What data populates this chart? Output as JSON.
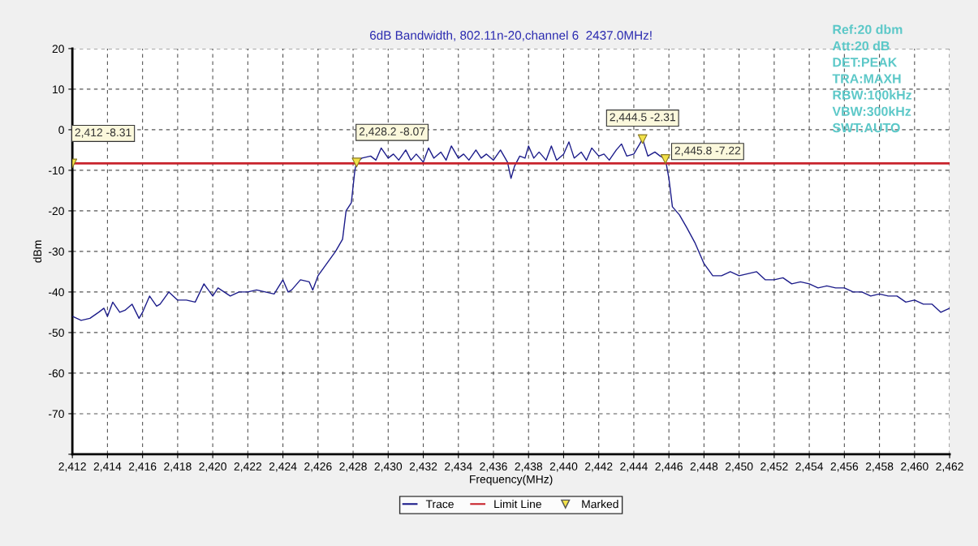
{
  "chart_data": {
    "type": "line",
    "title": "6dB Bandwidth, 802.11n-20,channel 6  2437.0MHz!",
    "xlabel": "Frequency(MHz)",
    "ylabel": "dBm",
    "xlim": [
      2412,
      2462
    ],
    "ylim": [
      -80,
      20
    ],
    "xticks": [
      {
        "value": 2412,
        "label": "2,412"
      },
      {
        "value": 2414,
        "label": "2,414"
      },
      {
        "value": 2416,
        "label": "2,416"
      },
      {
        "value": 2418,
        "label": "2,418"
      },
      {
        "value": 2420,
        "label": "2,420"
      },
      {
        "value": 2422,
        "label": "2,422"
      },
      {
        "value": 2424,
        "label": "2,424"
      },
      {
        "value": 2426,
        "label": "2,426"
      },
      {
        "value": 2428,
        "label": "2,428"
      },
      {
        "value": 2430,
        "label": "2,430"
      },
      {
        "value": 2432,
        "label": "2,432"
      },
      {
        "value": 2434,
        "label": "2,434"
      },
      {
        "value": 2436,
        "label": "2,436"
      },
      {
        "value": 2438,
        "label": "2,438"
      },
      {
        "value": 2440,
        "label": "2,440"
      },
      {
        "value": 2442,
        "label": "2,442"
      },
      {
        "value": 2444,
        "label": "2,444"
      },
      {
        "value": 2446,
        "label": "2,446"
      },
      {
        "value": 2448,
        "label": "2,448"
      },
      {
        "value": 2450,
        "label": "2,450"
      },
      {
        "value": 2452,
        "label": "2,452"
      },
      {
        "value": 2454,
        "label": "2,454"
      },
      {
        "value": 2456,
        "label": "2,456"
      },
      {
        "value": 2458,
        "label": "2,458"
      },
      {
        "value": 2460,
        "label": "2,460"
      },
      {
        "value": 2462,
        "label": "2,462"
      }
    ],
    "yticks": [
      {
        "value": -80,
        "label": null
      },
      -70,
      -60,
      -50,
      -40,
      -30,
      -20,
      -10,
      0,
      10,
      20
    ],
    "grid": true,
    "legend": "bottom",
    "series": [
      {
        "name": "Trace",
        "color": "#1c1c8a",
        "marker": "none",
        "line_style": "solid",
        "x": [
          2412,
          2412.5,
          2413,
          2413.5,
          2413.8,
          2414,
          2414.3,
          2414.7,
          2415,
          2415.4,
          2415.8,
          2416,
          2416.4,
          2416.8,
          2417,
          2417.5,
          2418,
          2418.5,
          2419,
          2419.5,
          2420,
          2420.3,
          2421,
          2421.5,
          2422,
          2422.5,
          2423,
          2423.5,
          2424,
          2424.3,
          2424.5,
          2425,
          2425.5,
          2425.7,
          2426,
          2426.5,
          2427,
          2427.4,
          2427.6,
          2427.9,
          2428.1,
          2428.2,
          2428.5,
          2429,
          2429.3,
          2429.6,
          2430,
          2430.3,
          2430.6,
          2431,
          2431.3,
          2431.6,
          2432,
          2432.3,
          2432.6,
          2433,
          2433.3,
          2433.6,
          2434,
          2434.3,
          2434.6,
          2435,
          2435.3,
          2435.6,
          2436,
          2436.4,
          2436.8,
          2437,
          2437.2,
          2437.5,
          2437.8,
          2438,
          2438.3,
          2438.6,
          2439,
          2439.3,
          2439.6,
          2440,
          2440.3,
          2440.6,
          2441,
          2441.3,
          2441.6,
          2442,
          2442.3,
          2442.6,
          2443,
          2443.3,
          2443.6,
          2444,
          2444.5,
          2444.8,
          2445.2,
          2445.5,
          2445.8,
          2446,
          2446.2,
          2446.6,
          2447,
          2447.5,
          2448,
          2448.5,
          2449,
          2449.5,
          2450,
          2450.5,
          2451,
          2451.5,
          2452,
          2452.5,
          2453,
          2453.5,
          2454,
          2454.5,
          2455,
          2455.5,
          2456,
          2456.5,
          2457,
          2457.5,
          2458,
          2458.5,
          2459,
          2459.5,
          2460,
          2460.5,
          2461,
          2461.5,
          2462
        ],
        "values": [
          -46,
          -47,
          -46.5,
          -45,
          -44,
          -46,
          -42.5,
          -45,
          -44.5,
          -43,
          -46.5,
          -45,
          -41,
          -43.5,
          -43,
          -40,
          -42,
          -42,
          -42.5,
          -38,
          -41,
          -39,
          -41,
          -40,
          -40,
          -39.5,
          -40,
          -40.5,
          -37,
          -40,
          -39.5,
          -37,
          -37.5,
          -39.5,
          -36,
          -33,
          -30,
          -27,
          -20,
          -18,
          -10,
          -8.07,
          -7,
          -6.5,
          -7.5,
          -4.5,
          -7,
          -6,
          -7.5,
          -5,
          -7.5,
          -6,
          -8,
          -4.5,
          -7,
          -5.5,
          -7.5,
          -4,
          -7,
          -6,
          -7.5,
          -5,
          -7,
          -6,
          -7.5,
          -5,
          -8,
          -12,
          -9,
          -6.5,
          -7,
          -4,
          -7,
          -5.5,
          -7.5,
          -4,
          -7.5,
          -6,
          -3,
          -7,
          -5.5,
          -7.5,
          -4.5,
          -6.5,
          -6,
          -7.5,
          -5,
          -3.5,
          -6.5,
          -6,
          -2.31,
          -6.5,
          -5.5,
          -6.5,
          -7.22,
          -12,
          -19,
          -21,
          -24,
          -28,
          -33,
          -36,
          -36,
          -35,
          -36,
          -35.5,
          -35,
          -37,
          -37,
          -36.5,
          -38,
          -37.5,
          -38,
          -39,
          -38.5,
          -39,
          -39,
          -40,
          -40,
          -41,
          -40.5,
          -41,
          -41,
          -42.5,
          -42,
          -43,
          -43,
          -45,
          -44
        ]
      },
      {
        "name": "Limit Line",
        "color": "#c8232c",
        "marker": "none",
        "line_style": "solid",
        "x": [
          2412,
          2462
        ],
        "values": [
          -8.31,
          -8.31
        ]
      },
      {
        "name": "Marked",
        "type": "scatter",
        "color": "#f2e24a",
        "marker": "triangle",
        "x": [
          2412,
          2428.2,
          2444.5,
          2445.8
        ],
        "values": [
          -8.31,
          -8.07,
          -2.31,
          -7.22
        ],
        "value_labels": [
          "2,412 -8.31",
          "2,428.2 -8.07",
          "2,444.5 -2.31",
          "2,445.8 -7.22"
        ]
      }
    ],
    "annotations": [
      "Ref:20 dbm",
      "Att:20 dB",
      "DET:PEAK",
      "TRA:MAXH",
      "RBW:100kHz",
      "VBW:300kHz",
      "SWT:AUTO"
    ]
  }
}
